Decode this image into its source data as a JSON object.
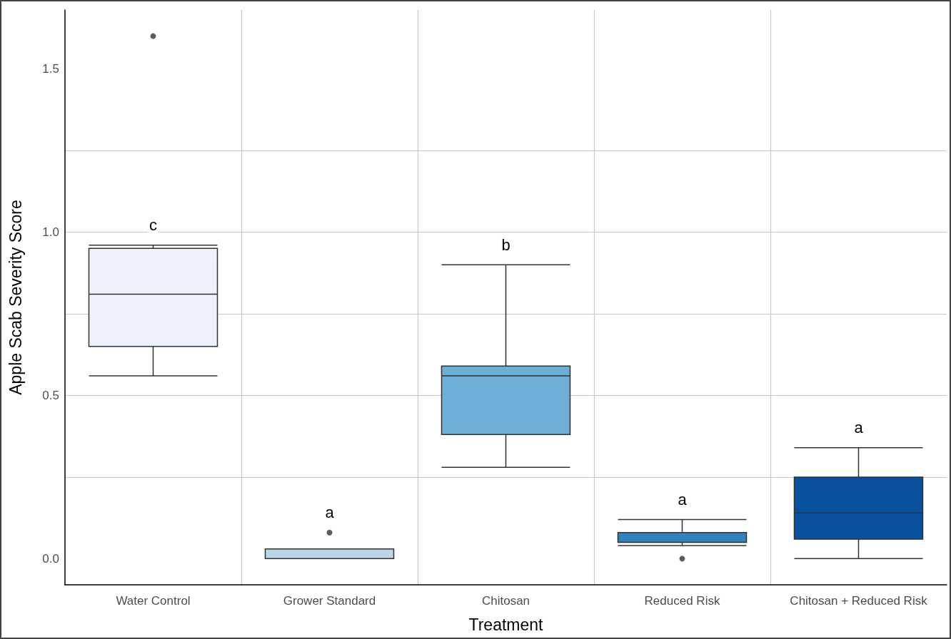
{
  "chart_data": {
    "type": "box",
    "xlabel": "Treatment",
    "ylabel": "Apple Scab Severity Score",
    "categories": [
      "Water Control",
      "Grower Standard",
      "Chitosan",
      "Reduced Risk",
      "Chitosan + Reduced Risk"
    ],
    "colors": [
      "#eef2fd",
      "#bcd6e7",
      "#6baed6",
      "#3182bd",
      "#08519c"
    ],
    "boxes": [
      {
        "low": 0.56,
        "q1": 0.65,
        "median": 0.81,
        "q3": 0.95,
        "high": 0.96,
        "outliers": [
          1.6
        ]
      },
      {
        "low": 0,
        "q1": 0,
        "median": 0,
        "q3": 0.03,
        "high": 0.03,
        "outliers": [
          0.08
        ]
      },
      {
        "low": 0.28,
        "q1": 0.38,
        "median": 0.56,
        "q3": 0.59,
        "high": 0.9
      },
      {
        "low": 0.04,
        "q1": 0.05,
        "median": 0.08,
        "q3": 0.08,
        "high": 0.12,
        "outliers": [
          0
        ]
      },
      {
        "low": 0,
        "q1": 0.06,
        "median": 0.14,
        "q3": 0.25,
        "high": 0.34
      }
    ],
    "ylim": [
      -0.08,
      1.68
    ],
    "yticks": [
      {
        "value": 0,
        "label": "0.0"
      },
      {
        "value": 0.25,
        "label": null
      },
      {
        "value": 0.5,
        "label": "0.5"
      },
      {
        "value": 0.75,
        "label": null
      },
      {
        "value": 1,
        "label": "1.0"
      },
      {
        "value": 1.25,
        "label": null
      },
      {
        "value": 1.5,
        "label": "1.5"
      }
    ],
    "grid": true,
    "annotations": [
      "c",
      "a",
      "b",
      "a",
      "a"
    ]
  }
}
